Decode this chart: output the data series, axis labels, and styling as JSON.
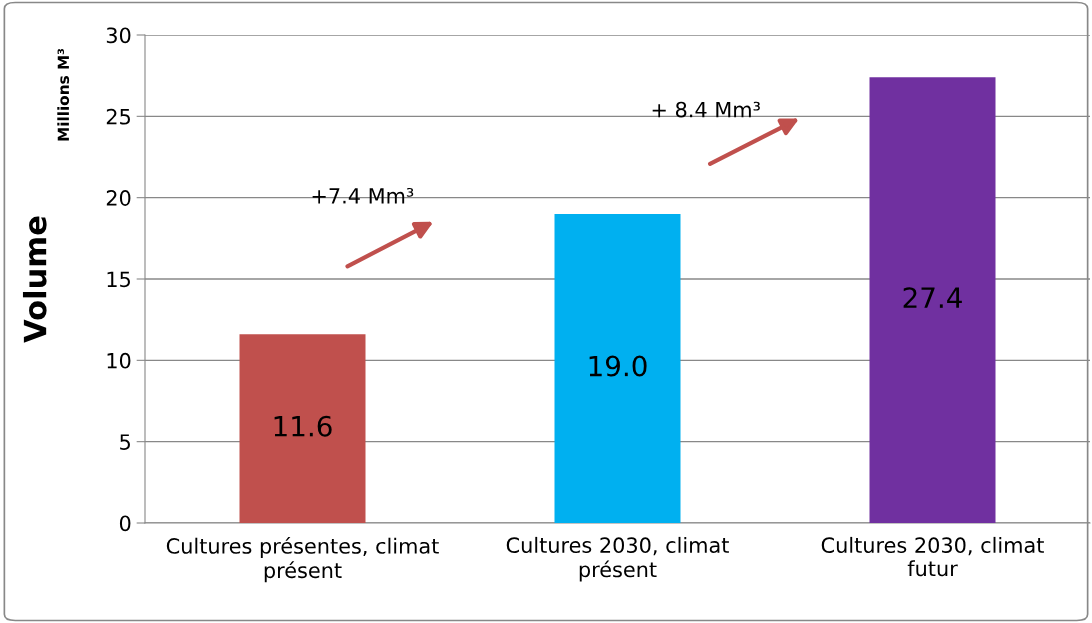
{
  "chart_data": {
    "type": "bar",
    "ylabel": "Volume",
    "categories": [
      "Cultures présentes, climat\nprésent",
      "Cultures 2030, climat\nprésent",
      "Cultures 2030, climat\nfutur"
    ],
    "values": [
      11.6,
      19.0,
      27.4
    ],
    "value_labels": [
      "11.6",
      "19.0",
      "27.4"
    ],
    "colors": [
      "#c0504d",
      "#00b0f0",
      "#7030a0"
    ],
    "ylim": [
      0,
      30
    ],
    "yticks": [
      0,
      5,
      10,
      15,
      20,
      25,
      30
    ],
    "grid": "y",
    "annotations": [
      "Millions M³",
      "+7.4 Mm³",
      "+ 8.4 Mm³"
    ]
  }
}
